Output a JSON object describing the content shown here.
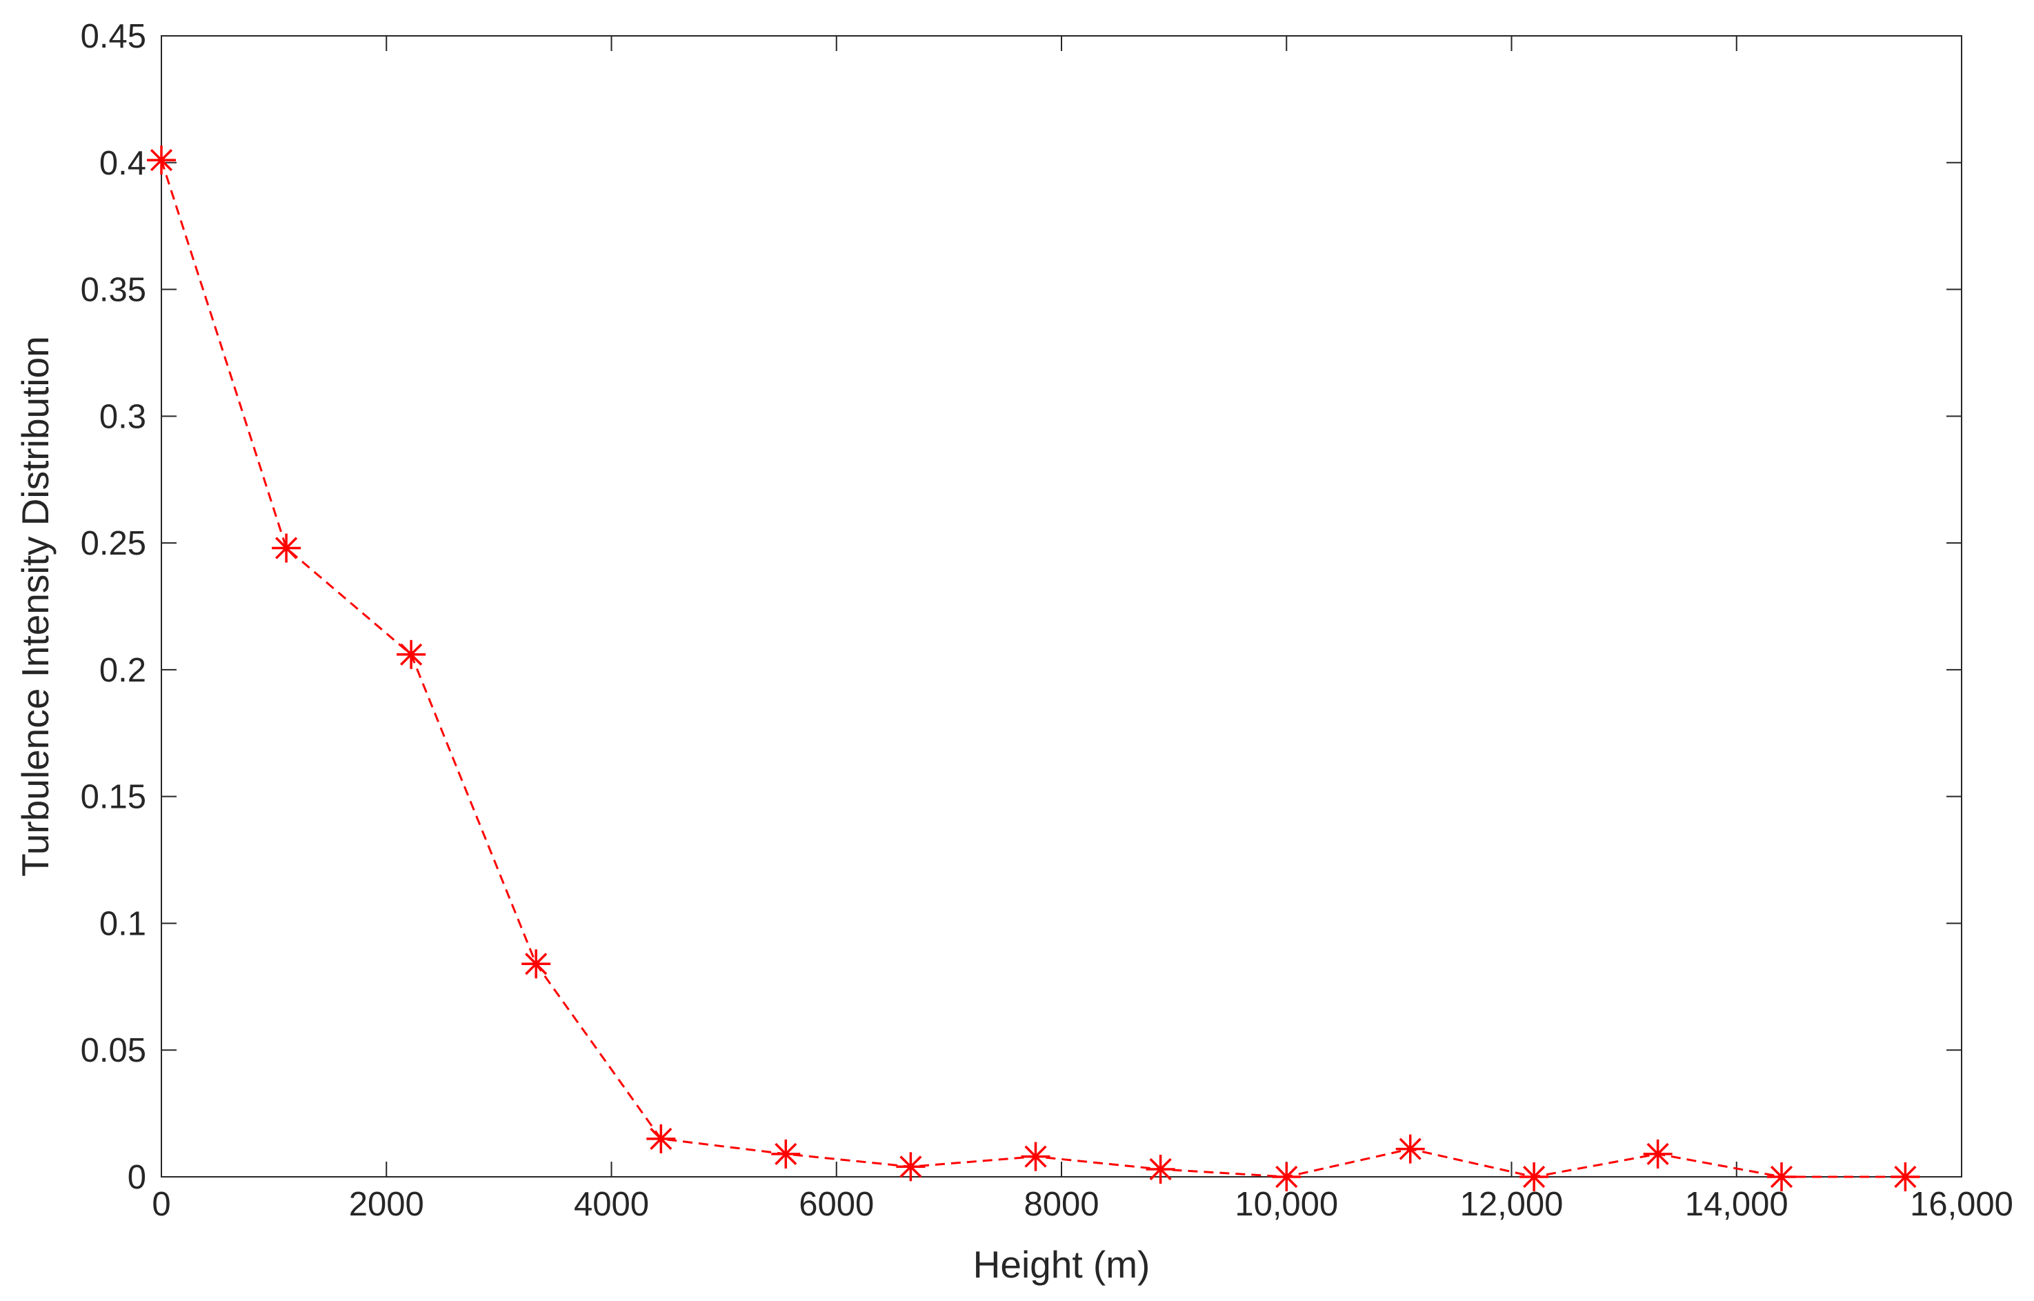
{
  "chart_data": {
    "type": "line",
    "title": "",
    "xlabel": "Height (m)",
    "ylabel": "Turbulence Intensity Distribution",
    "xlim": [
      0,
      16000
    ],
    "ylim": [
      0,
      0.45
    ],
    "xticks": [
      0,
      2000,
      4000,
      6000,
      8000,
      10000,
      12000,
      14000,
      16000
    ],
    "xtick_labels": [
      "0",
      "2000",
      "4000",
      "6000",
      "8000",
      "10,000",
      "12,000",
      "14,000",
      "16,000"
    ],
    "yticks": [
      0,
      0.05,
      0.1,
      0.15,
      0.2,
      0.25,
      0.3,
      0.35,
      0.4,
      0.45
    ],
    "ytick_labels": [
      "0",
      "0.05",
      "0.1",
      "0.15",
      "0.2",
      "0.25",
      "0.3",
      "0.35",
      "0.4",
      "0.45"
    ],
    "grid": false,
    "legend": null,
    "series": [
      {
        "color": "#ff0000",
        "line_style": "dashed",
        "marker": "asterisk",
        "x": [
          0,
          1110,
          2220,
          3330,
          4440,
          5550,
          6660,
          7770,
          8880,
          10000,
          11100,
          12200,
          13300,
          14400,
          15500
        ],
        "y": [
          0.401,
          0.248,
          0.206,
          0.084,
          0.015,
          0.009,
          0.004,
          0.008,
          0.003,
          0.0,
          0.011,
          0.0,
          0.009,
          0.0,
          0.0
        ]
      }
    ]
  }
}
